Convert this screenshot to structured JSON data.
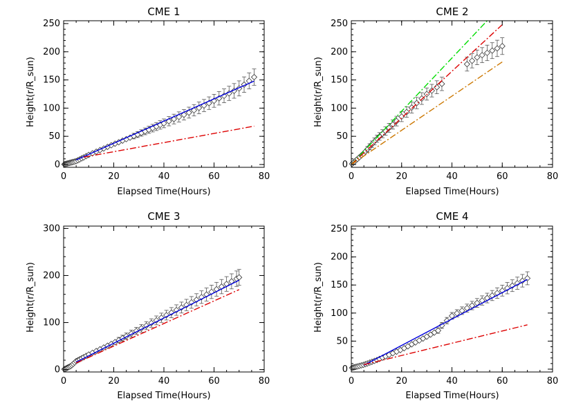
{
  "chart_data": [
    {
      "type": "scatter",
      "title": "CME 1",
      "xlabel": "Elapsed Time(Hours)",
      "ylabel": "Height(r/R_sun)",
      "xlim": [
        0,
        80
      ],
      "ylim": [
        -5,
        255
      ],
      "xticks": [
        0,
        20,
        40,
        60,
        80
      ],
      "yticks": [
        0,
        50,
        100,
        150,
        200,
        250
      ],
      "grid": false,
      "observations": {
        "marker": "diamond",
        "error_bars": true,
        "anchors_x": [
          0,
          5,
          10,
          20,
          30,
          40,
          50,
          60,
          70,
          76
        ],
        "anchors_y": [
          0,
          6,
          17,
          36,
          54,
          73,
          92,
          113,
          135,
          155
        ],
        "points_x": [
          0.3,
          0.6,
          1.0,
          1.4,
          1.8,
          2.3,
          2.8,
          3.3,
          3.8,
          4.4,
          5.0,
          5.7,
          6.4,
          7.2,
          8.0,
          9.0,
          10.0,
          11.5,
          13.0,
          14.5,
          16.0,
          17.5,
          19.0,
          20.5,
          22.0,
          23.5,
          25.0,
          26.5,
          28.0,
          29.5,
          31.0,
          32.5,
          34.0,
          35.5,
          37.0,
          38.5,
          40.0,
          42.0,
          44.0,
          46.0,
          48.0,
          50.0,
          52.0,
          54.0,
          56.0,
          58.0,
          60.0,
          62.0,
          64.0,
          66.0,
          68.0,
          70.0,
          72.0,
          74.0,
          76.0
        ],
        "err_start": 28
      },
      "lines": [
        {
          "color": "#0000dd",
          "style": "solid",
          "x": [
            5,
            76
          ],
          "y": [
            8,
            148
          ]
        },
        {
          "color": "#dd0000",
          "style": "dashdot",
          "x": [
            8,
            76
          ],
          "y": [
            13,
            68
          ]
        }
      ]
    },
    {
      "type": "scatter",
      "title": "CME 2",
      "xlabel": "Elapsed Time(Hours)",
      "ylabel": "Height(r/R_sun)",
      "xlim": [
        0,
        80
      ],
      "ylim": [
        -5,
        255
      ],
      "xticks": [
        0,
        20,
        40,
        60,
        80
      ],
      "yticks": [
        0,
        50,
        100,
        150,
        200,
        250
      ],
      "grid": false,
      "observations": {
        "marker": "diamond",
        "error_bars": true,
        "anchors_x": [
          0,
          5,
          10,
          15,
          20,
          25,
          30,
          35,
          40,
          45,
          50,
          55,
          60
        ],
        "anchors_y": [
          0,
          20,
          45,
          65,
          85,
          105,
          125,
          140,
          155,
          175,
          190,
          200,
          210
        ],
        "points_x": [
          0.3,
          0.8,
          1.3,
          1.9,
          2.5,
          3.2,
          4.0,
          4.8,
          5.6,
          6.4,
          7.3,
          8.2,
          9.2,
          10.2,
          11.2,
          12.4,
          13.6,
          15.0,
          16.5,
          18.0,
          20.0,
          22.0,
          24.0,
          26.0,
          28.0,
          30.0,
          32.0,
          34.0,
          36.0,
          46.0,
          48.0,
          50.0,
          52.0,
          54.0,
          56.0,
          58.0,
          60.0
        ],
        "err_start": 9
      },
      "lines": [
        {
          "color": "#00dd00",
          "style": "dashdot",
          "x": [
            0,
            54
          ],
          "y": [
            0,
            255
          ]
        },
        {
          "color": "#dd0000",
          "style": "dashdot",
          "x": [
            0,
            60
          ],
          "y": [
            0,
            248
          ]
        },
        {
          "color": "#cc7700",
          "style": "dashdot",
          "x": [
            0,
            60
          ],
          "y": [
            0,
            182
          ]
        }
      ]
    },
    {
      "type": "scatter",
      "title": "CME 3",
      "xlabel": "Elapsed Time(Hours)",
      "ylabel": "Height(r/R_sun)",
      "xlim": [
        0,
        80
      ],
      "ylim": [
        -5,
        305
      ],
      "xticks": [
        0,
        20,
        40,
        60,
        80
      ],
      "yticks": [
        0,
        100,
        200,
        300
      ],
      "grid": false,
      "observations": {
        "marker": "diamond",
        "error_bars": true,
        "anchors_x": [
          0,
          3,
          5,
          10,
          20,
          30,
          40,
          50,
          60,
          70
        ],
        "anchors_y": [
          0,
          8,
          18,
          32,
          57,
          85,
          113,
          140,
          168,
          196
        ],
        "points_x": [
          0.3,
          0.6,
          1.0,
          1.4,
          1.8,
          2.3,
          2.8,
          3.3,
          3.8,
          4.4,
          5.0,
          5.7,
          6.4,
          7.2,
          8.0,
          9.0,
          10.0,
          11.5,
          13.0,
          14.5,
          16.0,
          17.5,
          19.0,
          20.5,
          22.0,
          23.5,
          25.0,
          27.0,
          29.0,
          31.0,
          33.0,
          35.0,
          37.0,
          39.0,
          41.0,
          43.0,
          45.0,
          47.0,
          49.0,
          51.0,
          53.0,
          55.0,
          57.0,
          59.0,
          61.0,
          63.0,
          65.0,
          67.0,
          69.0,
          70.0
        ],
        "err_start": 24
      },
      "lines": [
        {
          "color": "#0000dd",
          "style": "solid",
          "x": [
            5,
            70
          ],
          "y": [
            16,
            190
          ]
        },
        {
          "color": "#dd0000",
          "style": "dashdot",
          "x": [
            5,
            70
          ],
          "y": [
            14,
            170
          ]
        }
      ]
    },
    {
      "type": "scatter",
      "title": "CME 4",
      "xlabel": "Elapsed Time(Hours)",
      "ylabel": "Height(r/R_sun)",
      "xlim": [
        0,
        80
      ],
      "ylim": [
        -5,
        255
      ],
      "xticks": [
        0,
        20,
        40,
        60,
        80
      ],
      "yticks": [
        0,
        50,
        100,
        150,
        200,
        250
      ],
      "grid": false,
      "observations": {
        "marker": "diamond",
        "error_bars": true,
        "anchors_x": [
          0,
          5,
          10,
          20,
          30,
          35,
          36,
          40,
          50,
          60,
          70
        ],
        "anchors_y": [
          2,
          8,
          16,
          35,
          58,
          70,
          78,
          95,
          118,
          140,
          162
        ],
        "points_x": [
          0.3,
          0.8,
          1.3,
          1.9,
          2.5,
          3.2,
          4.0,
          4.8,
          5.6,
          6.4,
          7.3,
          8.2,
          9.2,
          10.2,
          11.2,
          12.4,
          13.6,
          15.0,
          16.5,
          18.0,
          19.5,
          21.0,
          22.5,
          24.0,
          25.5,
          27.0,
          28.5,
          30.0,
          31.5,
          33.0,
          34.5,
          36.0,
          38.0,
          40.0,
          42.0,
          44.0,
          46.0,
          48.0,
          50.0,
          52.0,
          54.0,
          56.0,
          58.0,
          60.0,
          62.0,
          64.0,
          66.0,
          68.0,
          70.0
        ],
        "err_start": 30
      },
      "lines": [
        {
          "color": "#0000dd",
          "style": "solid",
          "x": [
            5,
            70
          ],
          "y": [
            7,
            160
          ]
        },
        {
          "color": "#dd0000",
          "style": "dashdot",
          "x": [
            5,
            70
          ],
          "y": [
            8,
            79
          ]
        }
      ]
    }
  ]
}
